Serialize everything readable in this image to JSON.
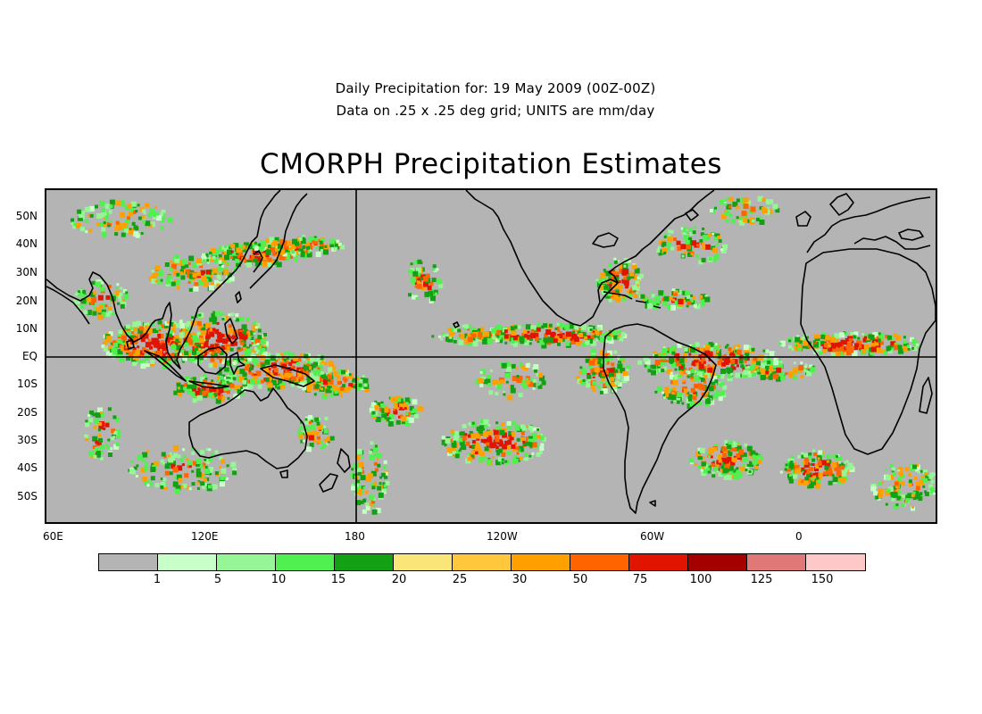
{
  "header": {
    "line1": "Daily Precipitation for: 19 May 2009 (00Z-00Z)",
    "line2": "Data on .25 x .25 deg grid; UNITS are mm/day",
    "title": "CMORPH Precipitation Estimates"
  },
  "map": {
    "lat_labels": [
      "50N",
      "40N",
      "30N",
      "20N",
      "10N",
      "EQ",
      "10S",
      "20S",
      "30S",
      "40S",
      "50S"
    ],
    "lon_labels": [
      "60E",
      "120E",
      "180",
      "120W",
      "60W",
      "0"
    ],
    "ocean_color": "#b4b4b4",
    "coast_color": "#000000"
  },
  "colorbar": {
    "labels": [
      "1",
      "5",
      "10",
      "15",
      "20",
      "25",
      "30",
      "50",
      "75",
      "100",
      "125",
      "150"
    ],
    "colors": [
      "#b4b4b4",
      "#c8ffc8",
      "#96f596",
      "#50f050",
      "#14a014",
      "#fae678",
      "#ffc83c",
      "#ffa000",
      "#ff6400",
      "#e11400",
      "#a50000",
      "#e17878",
      "#ffc8c8"
    ]
  }
}
